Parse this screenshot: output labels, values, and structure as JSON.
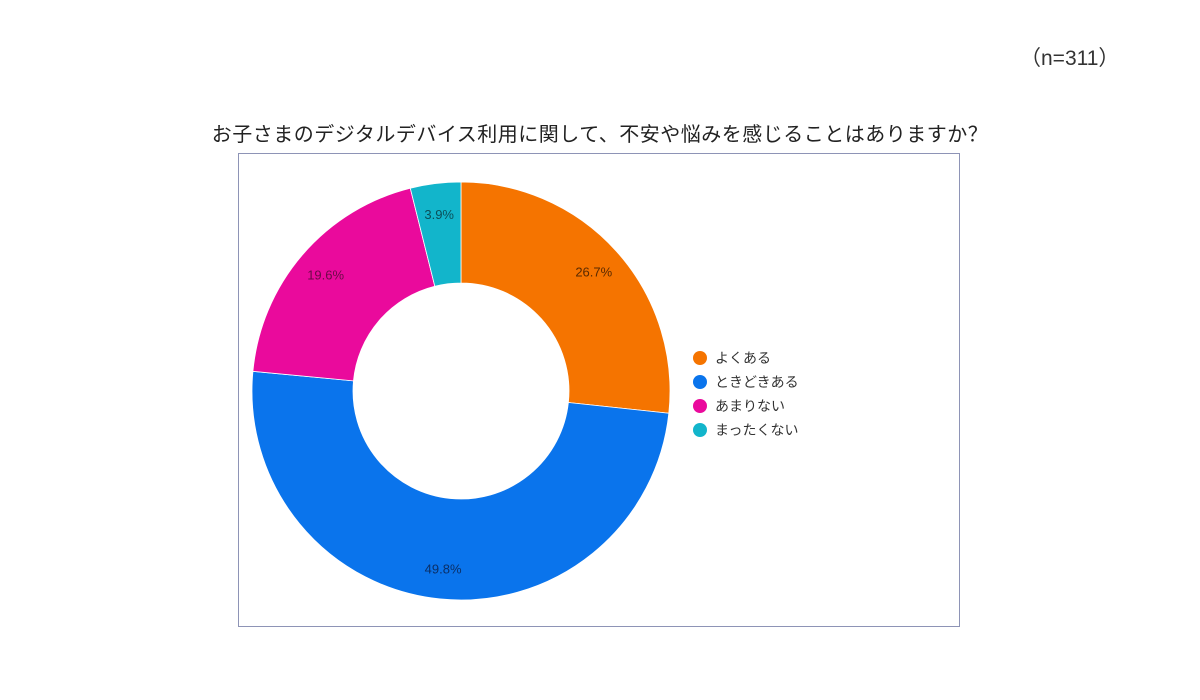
{
  "sample_size": "（n=311）",
  "title": "お子さまのデジタルデバイス利用に関して、不安や悩みを感じることはありますか？",
  "chart_data": {
    "type": "pie",
    "variant": "donut",
    "title": "お子さまのデジタルデバイス利用に関して、不安や悩みを感じることはありますか？",
    "note": "n=311",
    "categories": [
      "よくある",
      "ときどきある",
      "あまりない",
      "まったくない"
    ],
    "values": [
      26.7,
      49.8,
      19.6,
      3.9
    ],
    "labels": [
      "26.7%",
      "49.8%",
      "19.6%",
      "3.9%"
    ],
    "colors": [
      "#f57400",
      "#0a74ec",
      "#ea0a9c",
      "#12b5cb"
    ],
    "unit": "%",
    "legend_position": "right",
    "start_angle": "12 o'clock, clockwise"
  },
  "legend": {
    "items": [
      {
        "label": "よくある",
        "color": "#f57400"
      },
      {
        "label": "ときどきある",
        "color": "#0a74ec"
      },
      {
        "label": "あまりない",
        "color": "#ea0a9c"
      },
      {
        "label": "まったくない",
        "color": "#12b5cb"
      }
    ]
  }
}
